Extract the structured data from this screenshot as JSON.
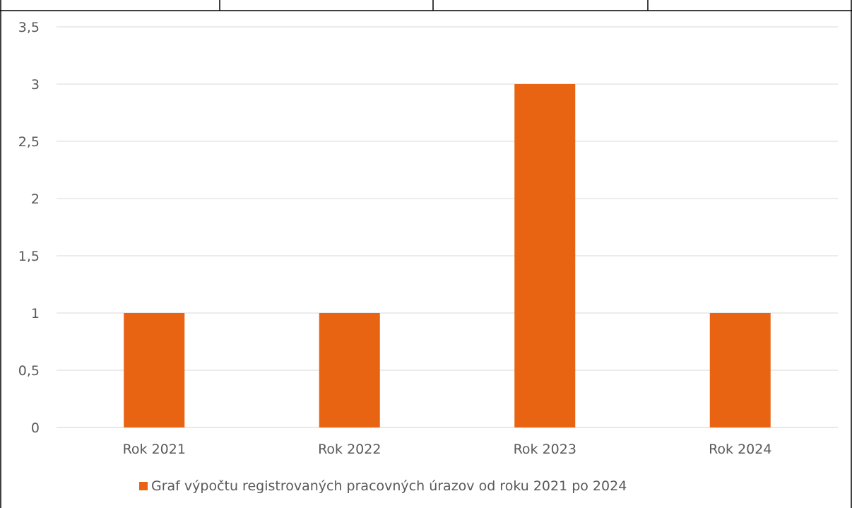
{
  "chart_data": {
    "type": "bar",
    "categories": [
      "Rok 2021",
      "Rok 2022",
      "Rok 2023",
      "Rok 2024"
    ],
    "series": [
      {
        "name": "Graf výpočtu registrovaných pracovných úrazov od roku 2021 po 2024",
        "values": [
          1,
          1,
          3,
          1
        ],
        "color": "#E86312"
      }
    ],
    "yticks": [
      "0",
      "0,5",
      "1",
      "1,5",
      "2",
      "2,5",
      "3",
      "3,5"
    ],
    "ylim": [
      0,
      3.5
    ],
    "grid": true,
    "legend_position": "bottom",
    "colors": {
      "bar": "#E86312",
      "grid": "#D9D9D9",
      "text": "#595959",
      "border": "#000000"
    }
  }
}
